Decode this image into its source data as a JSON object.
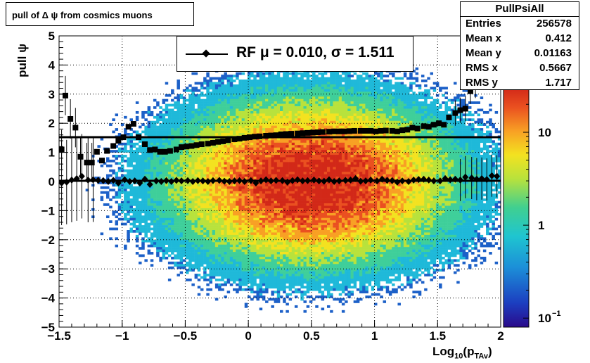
{
  "title": "pull of Δ ψ from cosmics muons",
  "stats": {
    "name": "PullPsiAll",
    "rows": [
      {
        "key": "Entries",
        "value": "256578"
      },
      {
        "key": "Mean x",
        "value": "0.412"
      },
      {
        "key": "Mean y",
        "value": "0.01163"
      },
      {
        "key": "RMS x",
        "value": "0.5667"
      },
      {
        "key": "RMS y",
        "value": "1.717"
      }
    ]
  },
  "legend": {
    "label": "RF μ =  0.010, σ =   1.511"
  },
  "colors": {
    "fit_line": "#000000",
    "markers": "#000000",
    "palette": [
      "#2a0a8a",
      "#1c60c8",
      "#1fb9d9",
      "#3fcf9a",
      "#b8e23c",
      "#f3e220",
      "#f8a024",
      "#ea5020",
      "#d22818"
    ]
  },
  "axes": {
    "xlabel": "Log",
    "xlabel_sub1": "10",
    "xlabel_mid": "(p",
    "xlabel_sub2": "TAv",
    "xlabel_end": ")",
    "ylabel": "pull ψ",
    "xticks": [
      "−1.5",
      "−1",
      "−0.5",
      "0",
      "0.5",
      "1",
      "1.5",
      "2"
    ],
    "yticks": [
      "−5",
      "−4",
      "−3",
      "−2",
      "−1",
      "0",
      "1",
      "2",
      "3",
      "4",
      "5"
    ],
    "zticks": [
      "10",
      "1",
      "10"
    ],
    "zticks_exp": "−1"
  },
  "chart_data": {
    "type": "heatmap",
    "title": "pull of Δ ψ from cosmics muons",
    "xlim": [
      -1.5,
      2.0
    ],
    "ylim": [
      -5,
      5
    ],
    "zscale": "log",
    "zlim": [
      0.08,
      30
    ],
    "grid": true,
    "legend_position": "top-center",
    "density_center": {
      "x": 0.5,
      "y": 0.0
    },
    "overlays": [
      {
        "name": "sigma",
        "marker": "square",
        "x": [
          -1.48,
          -1.45,
          -1.41,
          -1.37,
          -1.33,
          -1.28,
          -1.24,
          -1.2,
          -1.16,
          -1.12,
          -1.07,
          -1.03,
          -0.99,
          -0.95,
          -0.91,
          -0.87,
          -0.82,
          -0.78,
          -0.74,
          -0.7,
          -0.66,
          -0.62,
          -0.57,
          -0.53,
          -0.49,
          -0.45,
          -0.41,
          -0.37,
          -0.32,
          -0.28,
          -0.24,
          -0.2,
          -0.16,
          -0.11,
          -0.07,
          -0.03,
          0.01,
          0.05,
          0.09,
          0.14,
          0.18,
          0.22,
          0.26,
          0.3,
          0.34,
          0.39,
          0.43,
          0.47,
          0.51,
          0.55,
          0.59,
          0.64,
          0.68,
          0.72,
          0.76,
          0.8,
          0.84,
          0.89,
          0.93,
          0.97,
          1.01,
          1.05,
          1.09,
          1.14,
          1.18,
          1.22,
          1.26,
          1.3,
          1.34,
          1.39,
          1.43,
          1.47,
          1.51,
          1.55,
          1.59,
          1.64,
          1.68,
          1.72,
          1.76,
          1.8,
          1.84,
          1.89,
          1.93,
          1.97
        ],
        "y": [
          1.1,
          2.95,
          2.15,
          1.85,
          0.85,
          0.65,
          0.65,
          1.02,
          0.72,
          1.05,
          1.22,
          1.4,
          1.52,
          1.88,
          1.98,
          1.52,
          1.28,
          1.08,
          1.1,
          1.02,
          1.02,
          1.05,
          1.1,
          1.18,
          1.2,
          1.22,
          1.25,
          1.28,
          1.3,
          1.33,
          1.36,
          1.38,
          1.42,
          1.45,
          1.47,
          1.5,
          1.52,
          1.54,
          1.55,
          1.57,
          1.58,
          1.59,
          1.62,
          1.63,
          1.64,
          1.65,
          1.66,
          1.67,
          1.68,
          1.69,
          1.7,
          1.71,
          1.72,
          1.72,
          1.72,
          1.73,
          1.74,
          1.74,
          1.74,
          1.74,
          1.72,
          1.74,
          1.75,
          1.74,
          1.72,
          1.76,
          1.78,
          1.85,
          1.82,
          1.9,
          1.88,
          1.95,
          2.0,
          1.95,
          2.2,
          2.35,
          2.45,
          2.5,
          3.1,
          3.3,
          4.35,
          4.15,
          4.42,
          4.1
        ]
      },
      {
        "name": "mean",
        "marker": "diamond",
        "x": [
          -1.48,
          -1.44,
          -1.4,
          -1.36,
          -1.32,
          -1.27,
          -1.23,
          -1.19,
          -1.15,
          -1.11,
          -1.07,
          -1.03,
          -0.98,
          -0.94,
          -0.9,
          -0.86,
          -0.82,
          -0.78,
          -0.73,
          -0.69,
          -0.65,
          -0.61,
          -0.57,
          -0.53,
          -0.48,
          -0.44,
          -0.4,
          -0.36,
          -0.32,
          -0.28,
          -0.23,
          -0.19,
          -0.15,
          -0.11,
          -0.07,
          -0.03,
          0.02,
          0.06,
          0.1,
          0.14,
          0.18,
          0.22,
          0.27,
          0.31,
          0.35,
          0.39,
          0.43,
          0.47,
          0.52,
          0.56,
          0.6,
          0.64,
          0.68,
          0.72,
          0.77,
          0.81,
          0.85,
          0.89,
          0.93,
          0.97,
          1.02,
          1.06,
          1.1,
          1.14,
          1.18,
          1.22,
          1.27,
          1.31,
          1.35,
          1.39,
          1.43,
          1.47,
          1.52,
          1.56,
          1.6,
          1.64,
          1.68,
          1.72,
          1.77,
          1.81,
          1.85,
          1.89,
          1.93,
          1.97
        ],
        "y": [
          -0.05,
          -0.02,
          0.05,
          0.1,
          0.18,
          0.05,
          0.06,
          0.04,
          0.03,
          0.0,
          0.04,
          -0.05,
          0.06,
          0.0,
          0.02,
          -0.05,
          0.08,
          -0.1,
          0.02,
          0.0,
          0.03,
          0.0,
          0.04,
          0.02,
          0.03,
          0.0,
          0.03,
          0.02,
          0.0,
          0.03,
          0.04,
          0.01,
          0.0,
          0.02,
          0.03,
          0.0,
          0.03,
          -0.05,
          0.02,
          0.06,
          0.02,
          0.04,
          0.03,
          -0.02,
          0.03,
          0.06,
          0.02,
          0.03,
          0.05,
          0.02,
          0.01,
          0.06,
          0.0,
          0.02,
          0.04,
          0.05,
          0.1,
          0.01,
          0.02,
          0.05,
          0.02,
          0.08,
          0.04,
          0.03,
          -0.02,
          0.02,
          0.0,
          0.05,
          0.07,
          0.08,
          0.05,
          0.02,
          0.02,
          0.1,
          0.06,
          0.08,
          0.05,
          0.15,
          0.12,
          0.08,
          0.1,
          0.07,
          0.2,
          0.18
        ]
      }
    ],
    "fit_lines": [
      {
        "name": "sigma fit",
        "y": 1.511
      },
      {
        "name": "mean fit",
        "y": 0.01
      }
    ]
  }
}
